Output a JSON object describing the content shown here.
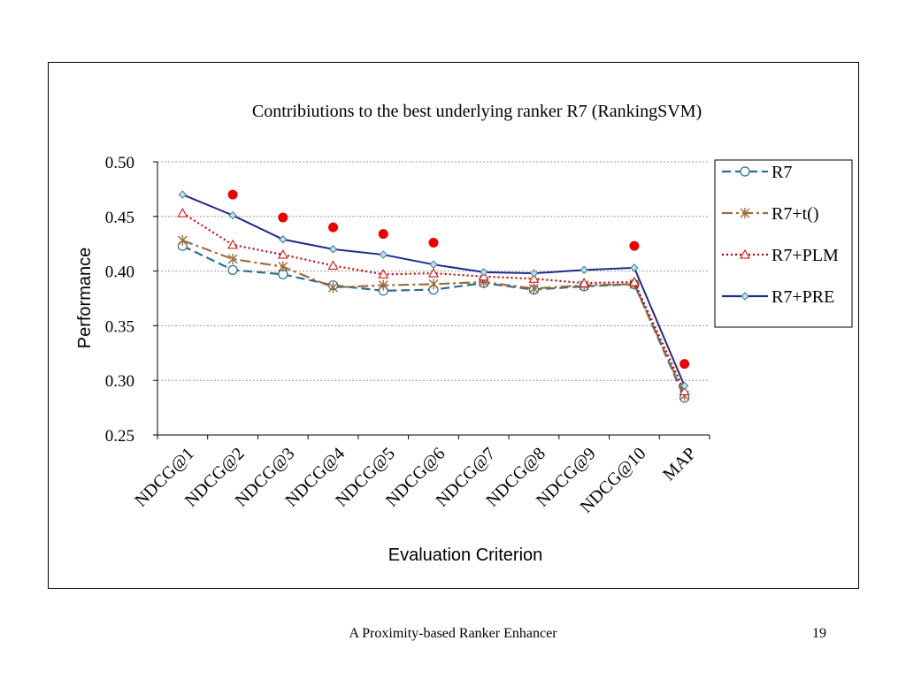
{
  "chart_data": {
    "type": "line",
    "title": "Contribiutions to the best underlying ranker R7 (RankingSVM)",
    "xlabel": "Evaluation Criterion",
    "ylabel": "Performance",
    "ylim": [
      0.25,
      0.5
    ],
    "yticks": [
      "0.50",
      "0.45",
      "0.40",
      "0.35",
      "0.30",
      "0.25"
    ],
    "categories": [
      "NDCG@1",
      "NDCG@2",
      "NDCG@3",
      "NDCG@4",
      "NDCG@5",
      "NDCG@6",
      "NDCG@7",
      "NDCG@8",
      "NDCG@9",
      "NDCG@10",
      "MAP"
    ],
    "grid": "horizontal",
    "legend_position": "right",
    "series": [
      {
        "name": "R7",
        "color": "#2e6e8e",
        "dash": "10,5",
        "marker": "circle",
        "values": [
          0.423,
          0.401,
          0.397,
          0.387,
          0.382,
          0.383,
          0.389,
          0.383,
          0.386,
          0.388,
          0.284
        ]
      },
      {
        "name": "R7+t()",
        "color": "#9e6c3a",
        "dash": "12,4,3,4",
        "marker": "asterisk",
        "values": [
          0.428,
          0.411,
          0.404,
          0.385,
          0.387,
          0.388,
          0.39,
          0.384,
          0.387,
          0.388,
          0.286
        ]
      },
      {
        "name": "R7+PLM",
        "color": "#cc0000",
        "dash": "2,3",
        "marker": "triangle",
        "values": [
          0.453,
          0.424,
          0.415,
          0.405,
          0.397,
          0.398,
          0.395,
          0.393,
          0.389,
          0.39,
          0.29
        ]
      },
      {
        "name": "R7+PRE",
        "color": "#1f2a8a",
        "dash": "",
        "marker": "diamond",
        "values": [
          0.47,
          0.451,
          0.429,
          0.42,
          0.415,
          0.406,
          0.399,
          0.398,
          0.401,
          0.403,
          0.295
        ]
      }
    ],
    "highlight_points": {
      "color": "#ee0000",
      "values": [
        null,
        0.47,
        0.449,
        0.44,
        0.434,
        0.426,
        null,
        null,
        null,
        0.423,
        0.315
      ]
    }
  },
  "footer": {
    "text": "A Proximity-based Ranker Enhancer",
    "page": "19"
  }
}
